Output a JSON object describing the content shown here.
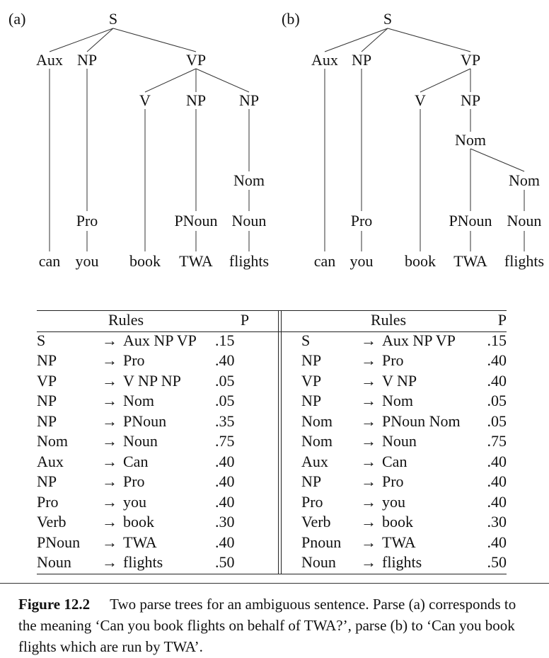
{
  "figure": {
    "panel_a_label": "(a)",
    "panel_b_label": "(b)",
    "tree_a": {
      "S": "S",
      "Aux": "Aux",
      "NP1": "NP",
      "VP": "VP",
      "V": "V",
      "NP2": "NP",
      "NP3": "NP",
      "Nom": "Nom",
      "Pro": "Pro",
      "PNoun": "PNoun",
      "Noun": "Noun",
      "w_can": "can",
      "w_you": "you",
      "w_book": "book",
      "w_twa": "TWA",
      "w_flights": "flights"
    },
    "tree_b": {
      "S": "S",
      "Aux": "Aux",
      "NP1": "NP",
      "VP": "VP",
      "V": "V",
      "NP2": "NP",
      "Nom1": "Nom",
      "Nom2": "Nom",
      "Pro": "Pro",
      "PNoun": "PNoun",
      "Noun": "Noun",
      "w_can": "can",
      "w_you": "you",
      "w_book": "book",
      "w_twa": "TWA",
      "w_flights": "flights"
    }
  },
  "table": {
    "left": {
      "header_rules": "Rules",
      "header_p": "P",
      "rows": [
        {
          "lhs": "S",
          "arrow": "→",
          "rhs": "Aux NP VP",
          "p": ".15"
        },
        {
          "lhs": "NP",
          "arrow": "→",
          "rhs": "Pro",
          "p": ".40"
        },
        {
          "lhs": "VP",
          "arrow": "→",
          "rhs": "V NP NP",
          "p": ".05"
        },
        {
          "lhs": "NP",
          "arrow": "→",
          "rhs": "Nom",
          "p": ".05"
        },
        {
          "lhs": "NP",
          "arrow": "→",
          "rhs": "PNoun",
          "p": ".35"
        },
        {
          "lhs": "Nom",
          "arrow": "→",
          "rhs": "Noun",
          "p": ".75"
        },
        {
          "lhs": "Aux",
          "arrow": "→",
          "rhs": "Can",
          "p": ".40"
        },
        {
          "lhs": "NP",
          "arrow": "→",
          "rhs": "Pro",
          "p": ".40"
        },
        {
          "lhs": "Pro",
          "arrow": "→",
          "rhs": "you",
          "p": ".40"
        },
        {
          "lhs": "Verb",
          "arrow": "→",
          "rhs": "book",
          "p": ".30"
        },
        {
          "lhs": "PNoun",
          "arrow": "→",
          "rhs": "TWA",
          "p": ".40"
        },
        {
          "lhs": "Noun",
          "arrow": "→",
          "rhs": "flights",
          "p": ".50"
        }
      ]
    },
    "right": {
      "header_rules": "Rules",
      "header_p": "P",
      "rows": [
        {
          "lhs": "S",
          "arrow": "→",
          "rhs": "Aux NP VP",
          "p": ".15"
        },
        {
          "lhs": "NP",
          "arrow": "→",
          "rhs": "Pro",
          "p": ".40"
        },
        {
          "lhs": "VP",
          "arrow": "→",
          "rhs": "V NP",
          "p": ".40"
        },
        {
          "lhs": "NP",
          "arrow": "→",
          "rhs": "Nom",
          "p": ".05"
        },
        {
          "lhs": "Nom",
          "arrow": "→",
          "rhs": "PNoun Nom",
          "p": ".05"
        },
        {
          "lhs": "Nom",
          "arrow": "→",
          "rhs": "Noun",
          "p": ".75"
        },
        {
          "lhs": "Aux",
          "arrow": "→",
          "rhs": "Can",
          "p": ".40"
        },
        {
          "lhs": "NP",
          "arrow": "→",
          "rhs": "Pro",
          "p": ".40"
        },
        {
          "lhs": "Pro",
          "arrow": "→",
          "rhs": "you",
          "p": ".40"
        },
        {
          "lhs": "Verb",
          "arrow": "→",
          "rhs": "book",
          "p": ".30"
        },
        {
          "lhs": "Pnoun",
          "arrow": "→",
          "rhs": "TWA",
          "p": ".40"
        },
        {
          "lhs": "Noun",
          "arrow": "→",
          "rhs": "flights",
          "p": ".50"
        }
      ]
    }
  },
  "caption": {
    "figure_label": "Figure 12.2",
    "text": "Two parse trees for an ambiguous sentence. Parse (a) corresponds to the meaning ‘Can you book flights on behalf of TWA?’, parse (b) to ‘Can you book flights which are run by TWA’."
  }
}
